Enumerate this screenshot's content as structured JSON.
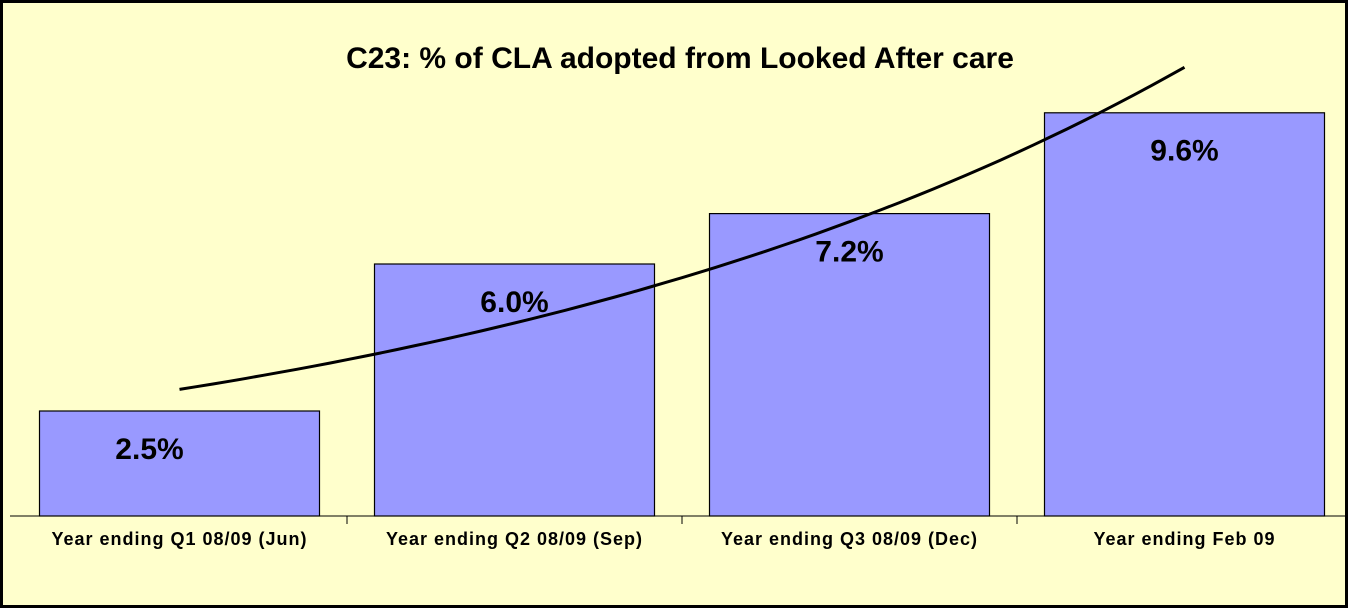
{
  "chart_data": {
    "type": "bar",
    "title": "C23: % of CLA adopted from Looked After care",
    "categories": [
      "Year ending Q1 08/09 (Jun)",
      "Year ending Q2 08/09 (Sep)",
      "Year ending Q3 08/09 (Dec)",
      "Year ending Feb 09"
    ],
    "values": [
      2.5,
      6.0,
      7.2,
      9.6
    ],
    "value_labels": [
      "2.5%",
      "6.0%",
      "7.2%",
      "9.6%"
    ],
    "color": "#9999ff",
    "ylim": [
      0,
      12
    ],
    "trendline": "exponential"
  }
}
